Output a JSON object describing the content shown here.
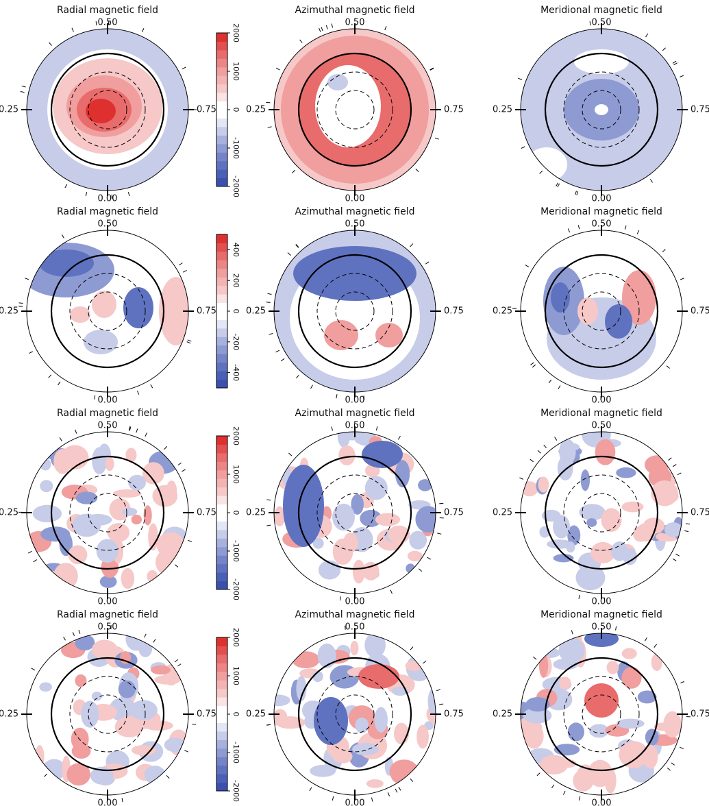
{
  "rows": [
    {
      "colorbar": {
        "lim": [
          -2000,
          2000
        ],
        "ticks": [
          -2000,
          -1000,
          0,
          1000,
          2000
        ]
      },
      "panels": [
        {
          "title": "Radial magnetic field",
          "top": "0.50",
          "left": "0.25",
          "right": "0.75",
          "bottom": "0.00"
        },
        {
          "title": "Azimuthal magnetic field",
          "top": "0.50",
          "left": "0.25",
          "right": "0.75",
          "bottom": "0.00"
        },
        {
          "title": "Meridional magnetic field",
          "top": "0.50",
          "left": "0.25",
          "right": "0.75",
          "bottom": "0.00"
        }
      ]
    },
    {
      "colorbar": {
        "lim": [
          -500,
          500
        ],
        "ticks": [
          -400,
          -200,
          0,
          200,
          400
        ]
      },
      "panels": [
        {
          "title": "Radial magnetic field",
          "top": "0.50",
          "left": "0.25",
          "right": "0.75",
          "bottom": "0.00"
        },
        {
          "title": "Azimuthal magnetic field",
          "top": "0.50",
          "left": "0.25",
          "right": "0.75",
          "bottom": "0.00"
        },
        {
          "title": "Meridional magnetic field",
          "top": "0.50",
          "left": "0.25",
          "right": "0.75",
          "bottom": "0.00"
        }
      ]
    },
    {
      "colorbar": {
        "lim": [
          -2000,
          2000
        ],
        "ticks": [
          -2000,
          -1000,
          0,
          1000,
          2000
        ]
      },
      "panels": [
        {
          "title": "Radial magnetic field",
          "top": "0.50",
          "left": "0.25",
          "right": "0.75",
          "bottom": "0.00"
        },
        {
          "title": "Azimuthal magnetic field",
          "top": "0.50",
          "left": "0.25",
          "right": "0.75",
          "bottom": "0.00"
        },
        {
          "title": "Meridional magnetic field",
          "top": "0.50",
          "left": "0.25",
          "right": "0.75",
          "bottom": "0.00"
        }
      ]
    },
    {
      "colorbar": {
        "lim": [
          -2000,
          2000
        ],
        "ticks": [
          -2000,
          -1000,
          0,
          1000,
          2000
        ]
      },
      "panels": [
        {
          "title": "Radial magnetic field",
          "top": "0.50",
          "left": "0.25",
          "right": "0.75",
          "bottom": "0.00"
        },
        {
          "title": "Azimuthal magnetic field",
          "top": "0.50",
          "left": "0.25",
          "right": "0.75",
          "bottom": "0.00"
        },
        {
          "title": "Meridional magnetic field",
          "top": "0.50",
          "left": "0.25",
          "right": "0.75",
          "bottom": "0.00"
        }
      ]
    }
  ]
}
